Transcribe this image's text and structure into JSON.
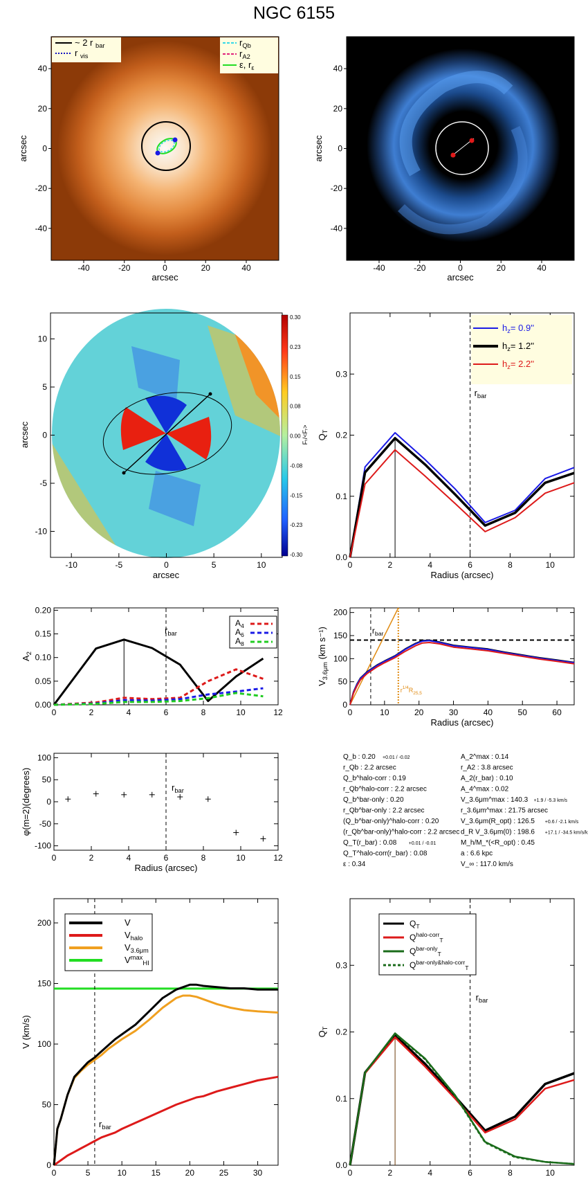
{
  "title": "NGC 6155",
  "panels": {
    "image1": {
      "xlabel": "arcsec",
      "ylabel": "arcsec",
      "xticks": [
        -40,
        -20,
        0,
        20,
        40
      ],
      "yticks": [
        -40,
        -20,
        0,
        20,
        40
      ],
      "legend_left": [
        {
          "label": "~ 2 r",
          "sub": "bar",
          "color": "#000000",
          "style": "solid"
        },
        {
          "label": "r",
          "sub": "vis",
          "color": "#1010c0",
          "style": "dotted"
        }
      ],
      "legend_right": [
        {
          "label": "r",
          "sub": "Qb",
          "color": "#33d8e8",
          "style": "dashed"
        },
        {
          "label": "r",
          "sub": "A2",
          "color": "#e0207a",
          "style": "dashed"
        },
        {
          "label": "ε, r",
          "sub": "ε",
          "color": "#22dd22",
          "style": "solid"
        }
      ]
    },
    "image2": {
      "xlabel": "arcsec",
      "ylabel": "arcsec",
      "xticks": [
        -40,
        -20,
        0,
        20,
        40
      ],
      "yticks": [
        -40,
        -20,
        0,
        20,
        40
      ]
    },
    "ratio_map": {
      "xlabel": "arcsec",
      "ylabel": "arcsec",
      "xticks": [
        -10,
        -5,
        0,
        5,
        10
      ],
      "yticks": [
        -10,
        -5,
        0,
        5,
        10
      ],
      "colorbar_ticks": [
        "0.30",
        "0.23",
        "0.15",
        "0.08",
        "0.00",
        "-0.08",
        "-0.15",
        "-0.23",
        "-0.30"
      ],
      "colorbar_label": "Fₜ/<Fᵣ>"
    },
    "stats": {
      "left": [
        {
          "text": "Q_b : 0.20",
          "extra": "+0.01 / -0.02"
        },
        {
          "text": "r_Qb : 2.2 arcsec"
        },
        {
          "text": "Q_b^halo-corr : 0.19"
        },
        {
          "text": "r_Qb^halo-corr : 2.2 arcsec"
        },
        {
          "text": "Q_b^bar-only : 0.20"
        },
        {
          "text": "r_Qb^bar-only : 2.2 arcsec"
        },
        {
          "text": "(Q_b^bar-only)^halo-corr : 0.20"
        },
        {
          "text": "(r_Qb^bar-only)^halo-corr : 2.2 arcsec"
        },
        {
          "text": "Q_T(r_bar) : 0.08",
          "extra": "+0.01 / -0.01"
        },
        {
          "text": "Q_T^halo-corr(r_bar) : 0.08"
        },
        {
          "text": "ε : 0.34"
        }
      ],
      "right": [
        {
          "text": "A_2^max : 0.14"
        },
        {
          "text": "r_A2 : 3.8 arcsec"
        },
        {
          "text": "A_2(r_bar) : 0.10"
        },
        {
          "text": "A_4^max : 0.02"
        },
        {
          "text": "V_3.6μm^max : 140.3",
          "extra": "+1.9 / -5.3 km/s"
        },
        {
          "text": "r_3.6μm^max : 21.75 arcsec"
        },
        {
          "text": "V_3.6μm(R_opt) : 126.5",
          "extra": "+0.6 / -2.1 km/s"
        },
        {
          "text": "d_R V_3.6μm(0) : 198.6",
          "extra": "+17.1 / -34.5 km/s/kpc"
        },
        {
          "text": "M_h/M_*(<R_opt) : 0.45"
        },
        {
          "text": "a : 6.6 kpc"
        },
        {
          "text": "V_∞ : 117.0 km/s"
        }
      ]
    }
  },
  "chart_data": [
    {
      "type": "line",
      "name_in_figure": "Q_T profile",
      "title": "",
      "xlabel": "Radius (arcsec)",
      "ylabel": "Q_T",
      "xlim": [
        0,
        11.2
      ],
      "ylim": [
        0,
        0.4
      ],
      "xticks": [
        0,
        2,
        4,
        6,
        8,
        10
      ],
      "yticks": [
        0.0,
        0.1,
        0.2,
        0.3
      ],
      "x": [
        0,
        0.75,
        2.25,
        3.75,
        5.25,
        6.75,
        8.25,
        9.75,
        11.2
      ],
      "series": [
        {
          "name": "h_z= 0.9''",
          "color": "#1a1ae6",
          "values": [
            0,
            0.148,
            0.204,
            0.16,
            0.112,
            0.057,
            0.077,
            0.129,
            0.147
          ]
        },
        {
          "name": "h_z= 1.2''",
          "color": "#000000",
          "values": [
            0,
            0.139,
            0.195,
            0.152,
            0.103,
            0.052,
            0.073,
            0.122,
            0.138
          ]
        },
        {
          "name": "h_z= 2.2''",
          "color": "#dd1a1a",
          "values": [
            0,
            0.12,
            0.176,
            0.133,
            0.088,
            0.042,
            0.065,
            0.105,
            0.122
          ]
        }
      ],
      "vline_label": "r",
      "vline_label_sub": "bar",
      "vline_x": 6.0,
      "marker_x": 2.25
    },
    {
      "type": "line",
      "name_in_figure": "A2 profile",
      "title": "",
      "xlabel": "",
      "ylabel": "A",
      "ylabel_sub": "2",
      "xlim": [
        0,
        12
      ],
      "ylim": [
        0,
        0.205
      ],
      "xticks": [
        0,
        2,
        4,
        6,
        8,
        10,
        12
      ],
      "yticks": [
        0.0,
        0.05,
        0.1,
        0.15,
        0.2
      ],
      "x": [
        0,
        2.25,
        3.75,
        5.25,
        6.75,
        8.25,
        9.75,
        11.2
      ],
      "series": [
        {
          "name": "A",
          "sub": "2",
          "color": "#000000",
          "values": [
            0,
            0.119,
            0.138,
            0.12,
            0.085,
            0.008,
            0.06,
            0.098
          ]
        },
        {
          "name": "A",
          "sub": "4",
          "color": "#dd1a1a",
          "values": [
            0,
            0.005,
            0.015,
            0.012,
            0.015,
            0.05,
            0.075,
            0.055
          ]
        },
        {
          "name": "A",
          "sub": "6",
          "color": "#1a1ae6",
          "values": [
            0,
            0.003,
            0.01,
            0.009,
            0.012,
            0.022,
            0.028,
            0.035
          ]
        },
        {
          "name": "A",
          "sub": "8",
          "color": "#22cc22",
          "values": [
            0,
            0.002,
            0.006,
            0.006,
            0.008,
            0.014,
            0.025,
            0.018
          ]
        }
      ],
      "vline_label": "r",
      "vline_label_sub": "bar",
      "vline_x": 6.0,
      "marker_x": 3.75
    },
    {
      "type": "line",
      "name_in_figure": "3.6um rotation curve",
      "title": "",
      "xlabel": "Radius (arcsec)",
      "ylabel": "V",
      "ylabel_sub": "3.6μm",
      "ylabel_unit": "(km s⁻¹)",
      "xlim": [
        0,
        65
      ],
      "ylim": [
        0,
        210
      ],
      "xticks": [
        0,
        10,
        20,
        30,
        40,
        50,
        60
      ],
      "yticks": [
        0,
        50,
        100,
        150,
        200
      ],
      "x": [
        0,
        1,
        2,
        3,
        5,
        8,
        10,
        13,
        16,
        19,
        21,
        23,
        26,
        30,
        35,
        40,
        45,
        50,
        55,
        60,
        65
      ],
      "series": [
        {
          "name": "V_3.6μm (black)",
          "color": "#000000",
          "values": [
            0,
            28,
            45,
            58,
            72,
            87,
            95,
            106,
            121,
            133,
            139,
            140,
            136,
            129,
            125,
            121,
            114,
            108,
            102,
            97,
            92
          ]
        },
        {
          "name": "V_3.6μm (blue)",
          "color": "#1a1ae6",
          "values": [
            0,
            27,
            44,
            57,
            71,
            86,
            94,
            105,
            120,
            132,
            138,
            139,
            135,
            128,
            124,
            120,
            113,
            107,
            101,
            96,
            91
          ]
        },
        {
          "name": "V_3.6μm (red)",
          "color": "#dd1a1a",
          "values": [
            0,
            25,
            41,
            54,
            68,
            83,
            91,
            102,
            116,
            128,
            134,
            135,
            132,
            125,
            121,
            117,
            111,
            105,
            99,
            94,
            89
          ]
        }
      ],
      "orange_line": {
        "x": [
          0,
          14
        ],
        "values": [
          0,
          210
        ]
      },
      "hline_y": 140.3,
      "vline_label": "r",
      "vline_label_sub": "bar",
      "vline_x": 6.0,
      "ropt_label": "r",
      "ropt_label_sub": "1/4",
      "ropt_label_tail": "R",
      "ropt_label_tail_sub": "25,5",
      "ropt_x": 14.0
    },
    {
      "type": "scatter",
      "name_in_figure": "phase profile",
      "title": "",
      "xlabel": "Radius (arcsec)",
      "ylabel": "φ(m=2)(degrees)",
      "xlim": [
        0,
        12
      ],
      "ylim": [
        -110,
        110
      ],
      "xticks": [
        0,
        2,
        4,
        6,
        8,
        10,
        12
      ],
      "yticks": [
        -100,
        -50,
        0,
        50,
        100
      ],
      "points": [
        {
          "x": 0.75,
          "y": 6
        },
        {
          "x": 2.25,
          "y": 18
        },
        {
          "x": 3.75,
          "y": 16
        },
        {
          "x": 5.25,
          "y": 16
        },
        {
          "x": 6.75,
          "y": 11
        },
        {
          "x": 8.25,
          "y": 6
        },
        {
          "x": 9.75,
          "y": -70
        },
        {
          "x": 11.2,
          "y": -84
        }
      ],
      "vline_label": "r",
      "vline_label_sub": "bar",
      "vline_x": 6.0
    },
    {
      "type": "line",
      "name_in_figure": "rotation curve decomposition",
      "title": "",
      "xlabel": "Radius (arcsec)",
      "ylabel": "V (km/s)",
      "xlim": [
        0,
        33
      ],
      "ylim": [
        0,
        220
      ],
      "xticks": [
        0,
        5,
        10,
        15,
        20,
        25,
        30
      ],
      "yticks": [
        0,
        50,
        100,
        150,
        200
      ],
      "x": [
        0,
        0.5,
        1,
        2,
        3,
        4,
        5,
        6,
        7,
        8,
        9,
        10,
        12,
        14,
        16,
        18,
        19,
        20,
        21,
        22,
        24,
        26,
        28,
        30,
        33
      ],
      "series": [
        {
          "name": "V",
          "color": "#000000",
          "values": [
            0,
            30,
            38,
            58,
            73,
            79,
            85,
            89,
            94,
            99,
            104,
            108,
            116,
            127,
            138,
            145,
            147,
            149,
            149,
            148,
            147,
            146,
            146,
            145,
            145
          ]
        },
        {
          "name": "V",
          "sub": "halo",
          "color": "#dd1a1a",
          "values": [
            0,
            2,
            4,
            8,
            11,
            14,
            17,
            20,
            23,
            25,
            27,
            30,
            35,
            40,
            45,
            50,
            52,
            54,
            56,
            57,
            61,
            64,
            67,
            70,
            73
          ]
        },
        {
          "name": "V",
          "sub": "3.6μm",
          "color": "#f0a020",
          "values": [
            0,
            30,
            38,
            58,
            72,
            78,
            83,
            87,
            91,
            96,
            100,
            104,
            111,
            120,
            130,
            138,
            140,
            140,
            139,
            137,
            133,
            130,
            128,
            127,
            126
          ]
        }
      ],
      "hi_line": {
        "name": "V",
        "sub": "HI",
        "sup": "max",
        "color": "#22dd22",
        "value": 145.8
      },
      "vline_label": "r",
      "vline_label_sub": "bar",
      "vline_x": 6.0
    },
    {
      "type": "line",
      "name_in_figure": "Q_T decomposition",
      "title": "",
      "xlabel": "Radius (arcsec)",
      "ylabel": "Q_T",
      "xlim": [
        0,
        11.2
      ],
      "ylim": [
        0,
        0.4
      ],
      "xticks": [
        0,
        2,
        4,
        6,
        8,
        10
      ],
      "yticks": [
        0.0,
        0.1,
        0.2,
        0.3
      ],
      "x": [
        0,
        0.75,
        2.25,
        3.75,
        5.25,
        6.75,
        8.25,
        9.75,
        11.2
      ],
      "series": [
        {
          "name": "Q",
          "sub": "T",
          "color": "#000000",
          "dash": false,
          "values": [
            0,
            0.139,
            0.195,
            0.152,
            0.103,
            0.052,
            0.073,
            0.122,
            0.138
          ]
        },
        {
          "name": "Q",
          "sub": "T",
          "sup": "halo-corr",
          "color": "#dd1a1a",
          "dash": false,
          "values": [
            0,
            0.138,
            0.192,
            0.148,
            0.1,
            0.049,
            0.069,
            0.115,
            0.128
          ]
        },
        {
          "name": "Q",
          "sub": "T",
          "sup": "bar-only",
          "color": "#1a6b1a",
          "dash": false,
          "values": [
            0,
            0.139,
            0.198,
            0.16,
            0.105,
            0.035,
            0.013,
            0.005,
            0.002
          ]
        },
        {
          "name": "Q",
          "sub": "T",
          "sup": "bar-only&halo-corr",
          "color": "#1a6b1a",
          "dash": true,
          "values": [
            0,
            0.139,
            0.197,
            0.159,
            0.104,
            0.034,
            0.012,
            0.005,
            0.002
          ]
        }
      ],
      "vline_label": "r",
      "vline_label_sub": "bar",
      "vline_x": 6.0,
      "marker_x": 2.25
    }
  ]
}
